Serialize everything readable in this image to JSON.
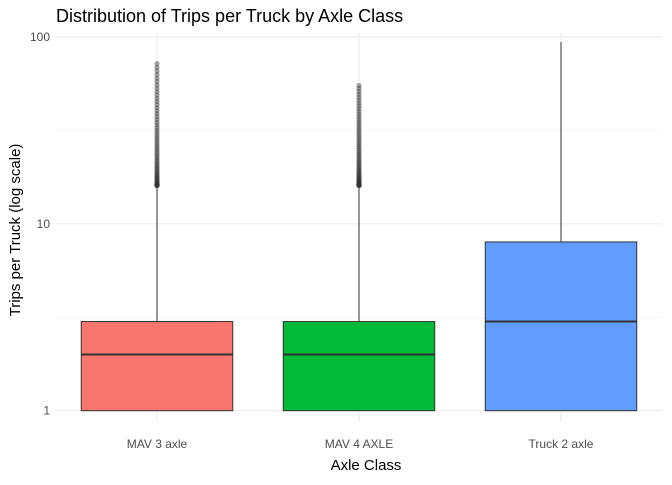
{
  "chart_data": {
    "type": "boxplot",
    "title": "Distribution of Trips per Truck by Axle Class",
    "xlabel": "Axle Class",
    "ylabel": "Trips per Truck (log scale)",
    "y_scale": "log10",
    "ylim": [
      0.87,
      105
    ],
    "y_ticks": [
      1,
      10,
      100
    ],
    "y_tick_labels": [
      "1",
      "10",
      "100"
    ],
    "grid": true,
    "legend": "none",
    "categories": [
      "MAV 3 axle",
      "MAV 4 AXLE",
      "Truck 2 axle"
    ],
    "boxes": [
      {
        "category": "MAV 3 axle",
        "whisker_low": 1,
        "q1": 1,
        "median": 2,
        "q3": 3,
        "whisker_high": 15.5,
        "outlier_range": [
          16,
          72
        ],
        "color": "#F8766D"
      },
      {
        "category": "MAV 4 AXLE",
        "whisker_low": 1,
        "q1": 1,
        "median": 2,
        "q3": 3,
        "whisker_high": 15.5,
        "outlier_range": [
          16,
          55
        ],
        "color": "#00BA38"
      },
      {
        "category": "Truck 2 axle",
        "whisker_low": 1,
        "q1": 1,
        "median": 3,
        "q3": 8,
        "whisker_high": 94,
        "outlier_range": null,
        "color": "#619CFF"
      }
    ]
  }
}
